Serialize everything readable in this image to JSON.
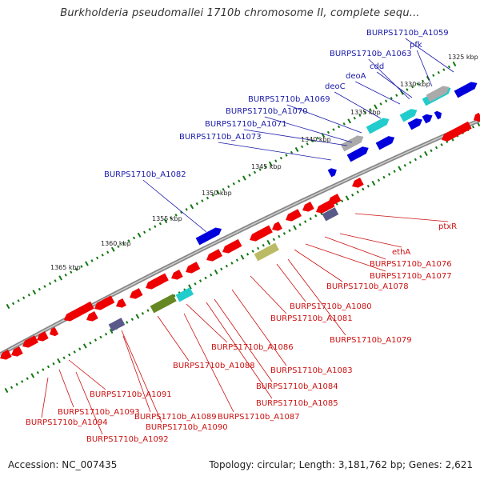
{
  "title": "Burkholderia pseudomallei 1710b chromosome II, complete sequ...",
  "accession_text": "Accession: NC_007435",
  "topology_text": "Topology: circular; Length: 3,181,762 bp; Genes: 2,621",
  "colors": {
    "forward_label": "#1a1aaa",
    "reverse_label": "#cc1111",
    "forward_gene": "#0000dd",
    "reverse_gene": "#ee0000",
    "backbone": "#777777",
    "tick": "#117711"
  },
  "ticks": [
    "1325 kbp",
    "1330 kbp",
    "1335 kbp",
    "1340 kbp",
    "1345 kbp",
    "1350 kbp",
    "1355 kbp",
    "1360 kbp",
    "1365 kbp"
  ],
  "forward_labels": [
    "BURPS1710b_A1059",
    "pfk",
    "BURPS1710b_A1063",
    "cdd",
    "deoA",
    "deoC",
    "BURPS1710b_A1069",
    "BURPS1710b_A1070",
    "BURPS1710b_A1071",
    "BURPS1710b_A1073",
    "BURPS1710b_A1082"
  ],
  "reverse_labels": [
    "ptxR",
    "ethA",
    "BURPS1710b_A1076",
    "BURPS1710b_A1077",
    "BURPS1710b_A1078",
    "BURPS1710b_A1080",
    "BURPS1710b_A1081",
    "BURPS1710b_A1079",
    "BURPS1710b_A1086",
    "BURPS1710b_A1088",
    "BURPS1710b_A1083",
    "BURPS1710b_A1084",
    "BURPS1710b_A1085",
    "BURPS1710b_A1087",
    "BURPS1710b_A1089",
    "BURPS1710b_A1090",
    "BURPS1710b_A1091",
    "BURPS1710b_A1093",
    "BURPS1710b_A1094",
    "BURPS1710b_A1092"
  ]
}
